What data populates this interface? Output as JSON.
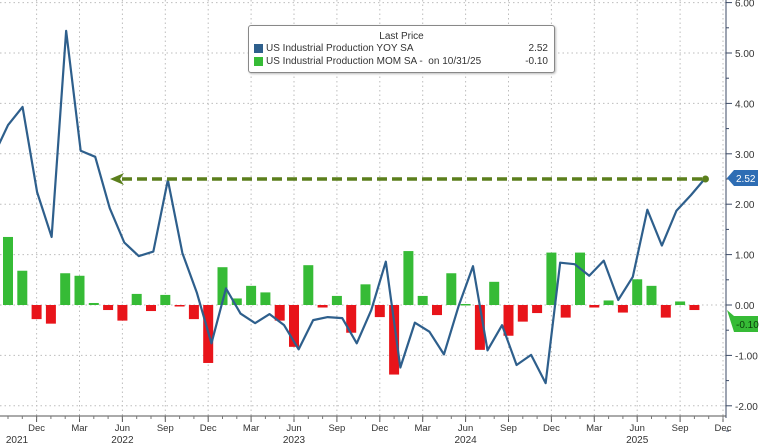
{
  "chart_data": {
    "type": "bar+line",
    "legend": {
      "title": "Last Price",
      "placement": "top-center",
      "entries": [
        {
          "name": "US Industrial Production YOY SA",
          "value": "2.52",
          "color": "#2e5f8c"
        },
        {
          "name": "US Industrial Production MOM SA -",
          "date_note": "on 10/31/25",
          "value": "-0.10",
          "color": "#36bb36"
        }
      ]
    },
    "y_axis": {
      "position": "right",
      "range": [
        -2,
        6
      ],
      "ticks": [
        "6.00",
        "5.00",
        "4.00",
        "3.00",
        "2.00",
        "1.00",
        "0.00",
        "-1.00",
        "-2.00"
      ]
    },
    "x_axis": {
      "month_ticks": [
        "Dec",
        "Mar",
        "Jun",
        "Sep",
        "Dec",
        "Mar",
        "Jun",
        "Sep",
        "Dec",
        "Mar",
        "Jun",
        "Sep",
        "Dec",
        "Mar",
        "Jun",
        "Sep",
        "Dec"
      ],
      "years": [
        "2021",
        "2022",
        "2023",
        "2024",
        "2025"
      ]
    },
    "grid": true,
    "last_value_badges": [
      {
        "value": "2.52",
        "color": "#2e6db4"
      },
      {
        "value": "-0.10",
        "color": "#36bb36"
      }
    ],
    "annotation": {
      "type": "dashed-arrow",
      "level": 2.52,
      "color": "#5b7f1c"
    },
    "line_series": {
      "name": "US Industrial Production YOY SA",
      "color": "#2e5f8c",
      "dates": [
        "Sep 2021",
        "Oct 2021",
        "Nov 2021",
        "Dec 2021",
        "Jan 2022",
        "Feb 2022",
        "Mar 2022",
        "Apr 2022",
        "May 2022",
        "Jun 2022",
        "Jul 2022",
        "Aug 2022",
        "Sep 2022",
        "Oct 2022",
        "Nov 2022",
        "Dec 2022",
        "Jan 2023",
        "Feb 2023",
        "Mar 2023",
        "Apr 2023",
        "May 2023",
        "Jun 2023",
        "Jul 2023",
        "Aug 2023",
        "Sep 2023",
        "Oct 2023",
        "Nov 2023",
        "Dec 2023",
        "Jan 2024",
        "Feb 2024",
        "Mar 2024",
        "Apr 2024",
        "May 2024",
        "Jun 2024",
        "Jul 2024",
        "Aug 2024",
        "Sep 2024",
        "Oct 2024",
        "Nov 2024",
        "Dec 2024",
        "Jan 2025",
        "Feb 2025",
        "Mar 2025",
        "Apr 2025",
        "May 2025",
        "Jun 2025",
        "Jul 2025",
        "Aug 2025",
        "Sep 2025",
        "Oct 2025"
      ],
      "values": [
        2.96,
        3.57,
        3.93,
        2.24,
        1.35,
        5.44,
        3.06,
        2.94,
        1.92,
        1.24,
        0.97,
        1.06,
        2.48,
        1.03,
        0.24,
        -0.76,
        0.33,
        -0.17,
        -0.36,
        -0.18,
        -0.4,
        -0.88,
        -0.3,
        -0.24,
        -0.26,
        -0.76,
        -0.1,
        0.86,
        -1.24,
        -0.35,
        -0.53,
        -0.98,
        -0.03,
        0.77,
        -0.9,
        -0.4,
        -1.19,
        -0.99,
        -1.55,
        0.84,
        0.81,
        0.58,
        0.88,
        0.1,
        0.56,
        1.89,
        1.18,
        1.87,
        2.18,
        2.52
      ]
    },
    "bar_series": {
      "name": "US Industrial Production MOM SA",
      "positive_color": "#36bb36",
      "negative_color": "#e8141a",
      "dates": [
        "Oct 2021",
        "Nov 2021",
        "Dec 2021",
        "Jan 2022",
        "Feb 2022",
        "Mar 2022",
        "Apr 2022",
        "May 2022",
        "Jun 2022",
        "Jul 2022",
        "Aug 2022",
        "Sep 2022",
        "Oct 2022",
        "Nov 2022",
        "Dec 2022",
        "Jan 2023",
        "Feb 2023",
        "Mar 2023",
        "Apr 2023",
        "May 2023",
        "Jun 2023",
        "Jul 2023",
        "Aug 2023",
        "Sep 2023",
        "Oct 2023",
        "Nov 2023",
        "Dec 2023",
        "Jan 2024",
        "Feb 2024",
        "Mar 2024",
        "Apr 2024",
        "May 2024",
        "Jun 2024",
        "Jul 2024",
        "Aug 2024",
        "Sep 2024",
        "Oct 2024",
        "Nov 2024",
        "Dec 2024",
        "Jan 2025",
        "Feb 2025",
        "Mar 2025",
        "Apr 2025",
        "May 2025",
        "Jun 2025",
        "Jul 2025",
        "Aug 2025",
        "Sep 2025",
        "Oct 2025"
      ],
      "values": [
        1.35,
        0.68,
        -0.28,
        -0.37,
        0.63,
        0.58,
        0.04,
        -0.1,
        -0.31,
        0.22,
        -0.12,
        0.2,
        -0.03,
        -0.28,
        -1.15,
        0.75,
        0.13,
        0.38,
        0.25,
        -0.31,
        -0.83,
        0.79,
        -0.05,
        0.18,
        -0.55,
        0.41,
        -0.24,
        -1.38,
        1.07,
        0.18,
        -0.2,
        0.63,
        0.02,
        -0.89,
        0.46,
        -0.61,
        -0.33,
        -0.16,
        1.04,
        -0.25,
        1.04,
        -0.05,
        0.09,
        -0.15,
        0.51,
        0.38,
        -0.25,
        0.07,
        -0.1
      ]
    }
  }
}
